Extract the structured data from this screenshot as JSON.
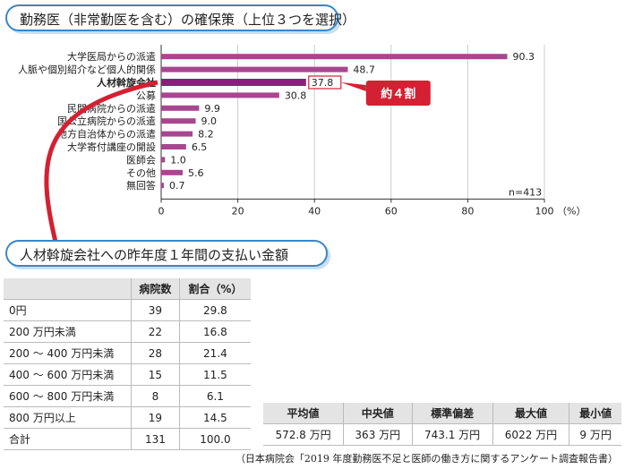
{
  "titles": {
    "chart": "勤務医（非常勤医を含む）の確保策（上位３つを選択）",
    "table": "人材斡旋会社への昨年度１年間の支払い金額"
  },
  "chart_data": {
    "type": "bar",
    "orientation": "horizontal",
    "categories": [
      "大学医局からの派遣",
      "人脈や個別紹介など個人的関係",
      "人材斡旋会社",
      "公募",
      "民間病院からの派遣",
      "国公立病院からの派遣",
      "地方自治体からの派遣",
      "大学寄付講座の開設",
      "医師会",
      "その他",
      "無回答"
    ],
    "values": [
      90.3,
      48.7,
      37.8,
      30.8,
      9.9,
      9.0,
      8.2,
      6.5,
      1.0,
      5.6,
      0.7
    ],
    "value_labels": [
      "90.3",
      "48.7",
      "37.8",
      "30.8",
      "9.9",
      "9.0",
      "8.2",
      "6.5",
      "1.0",
      "5.6",
      "0.7"
    ],
    "highlight_index": 2,
    "xlim": [
      0,
      100
    ],
    "xticks": [
      0,
      20,
      40,
      60,
      80,
      100
    ],
    "xunit": "（%）",
    "note": "n=413",
    "callout": "約４割",
    "colors": {
      "bar": "#a8468f",
      "highlight": "#8e1f78",
      "callout": "#d42032",
      "axis": "#333333",
      "grid": "#cccccc"
    }
  },
  "pay_table": {
    "headers": [
      "",
      "病院数",
      "割合（%）"
    ],
    "rows": [
      [
        "0円",
        "39",
        "29.8"
      ],
      [
        "200 万円未満",
        "22",
        "16.8"
      ],
      [
        "200 ～ 400 万円未満",
        "28",
        "21.4"
      ],
      [
        "400 ～ 600 万円未満",
        "15",
        "11.5"
      ],
      [
        "600 ～ 800 万円未満",
        "8",
        "6.1"
      ],
      [
        "800 万円以上",
        "19",
        "14.5"
      ],
      [
        "合計",
        "131",
        "100.0"
      ]
    ]
  },
  "stat_table": {
    "headers": [
      "平均値",
      "中央値",
      "標準偏差",
      "最大値",
      "最小値"
    ],
    "values": [
      "572.8 万円",
      "363 万円",
      "743.1 万円",
      "6022 万円",
      "9 万円"
    ]
  },
  "source": "（日本病院会「2019 年度勤務医不足と医師の働き方に関するアンケート調査報告書）"
}
